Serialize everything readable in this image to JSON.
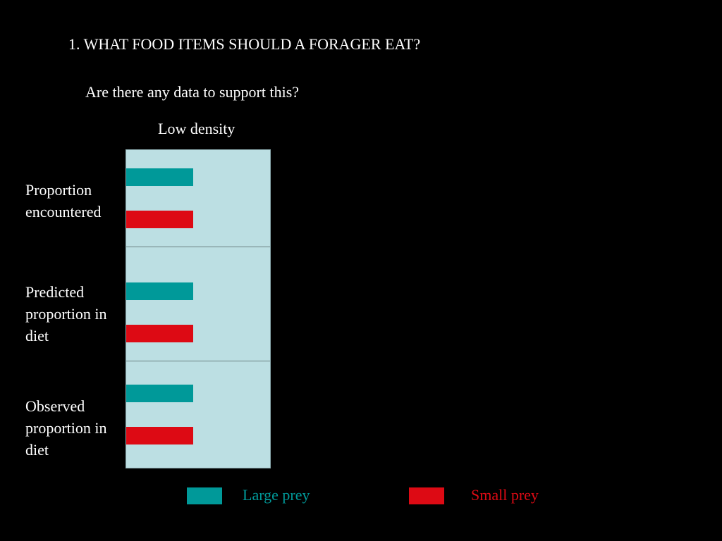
{
  "heading": "1. WHAT FOOD ITEMS SHOULD A FORAGER EAT?",
  "subheading": "Are there any data to support this?",
  "colors": {
    "background": "#000000",
    "panel": "#bcdfe3",
    "large_prey": "#009999",
    "small_prey": "#dd0a14"
  },
  "chart_data": {
    "type": "bar",
    "orientation": "horizontal",
    "title": "Low density",
    "categories": [
      "Proportion encountered",
      "Predicted proportion in diet",
      "Observed proportion in diet"
    ],
    "series": [
      {
        "name": "Large prey",
        "values": [
          0.5,
          0.5,
          0.5
        ]
      },
      {
        "name": "Small prey",
        "values": [
          0.5,
          0.5,
          0.5
        ]
      }
    ],
    "xlim": [
      0,
      1
    ],
    "grid": false,
    "legend": "bottom"
  }
}
